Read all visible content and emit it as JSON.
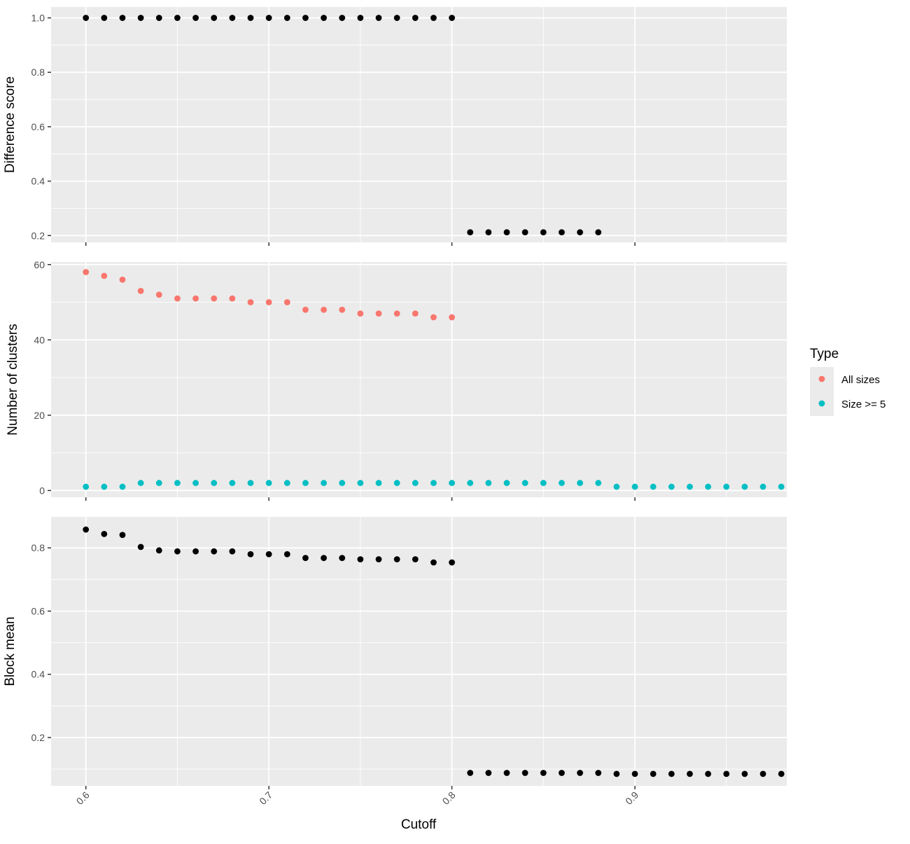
{
  "chart_data": {
    "type": "scatter",
    "xlabel": "Cutoff",
    "x_tick_labels": [
      "0.6",
      "0.7",
      "0.8",
      "0.9"
    ],
    "x_ticks": [
      0.6,
      0.7,
      0.8,
      0.9
    ],
    "xlim": [
      0.581,
      0.983
    ],
    "grid": true,
    "legend": {
      "title": "Type",
      "placement": "right",
      "entries": [
        {
          "label": "All sizes",
          "color": "#F8766D"
        },
        {
          "label": "Size >= 5",
          "color": "#00BFC4"
        }
      ]
    },
    "panels": [
      {
        "id": "difference",
        "ylabel": "Difference score",
        "ylim": [
          0.175,
          1.04
        ],
        "y_ticks": [
          0.2,
          0.4,
          0.6,
          0.8,
          1.0
        ],
        "y_tick_labels": [
          "0.2",
          "0.4",
          "0.6",
          "0.8",
          "1.0"
        ],
        "series": [
          {
            "color": "#000000",
            "x": [
              0.6,
              0.61,
              0.62,
              0.63,
              0.64,
              0.65,
              0.66,
              0.67,
              0.68,
              0.69,
              0.7,
              0.71,
              0.72,
              0.73,
              0.74,
              0.75,
              0.76,
              0.77,
              0.78,
              0.79,
              0.8,
              0.81,
              0.82,
              0.83,
              0.84,
              0.85,
              0.86,
              0.87,
              0.88
            ],
            "y": [
              1.0,
              1.0,
              1.0,
              1.0,
              1.0,
              1.0,
              1.0,
              1.0,
              1.0,
              1.0,
              1.0,
              1.0,
              1.0,
              1.0,
              1.0,
              1.0,
              1.0,
              1.0,
              1.0,
              1.0,
              1.0,
              0.212,
              0.212,
              0.212,
              0.212,
              0.212,
              0.212,
              0.212,
              0.212
            ]
          }
        ]
      },
      {
        "id": "clusters",
        "ylabel": "Number of clusters",
        "ylim": [
          -1.8,
          60.7
        ],
        "y_ticks": [
          0,
          20,
          40,
          60
        ],
        "y_tick_labels": [
          "0",
          "20",
          "40",
          "60"
        ],
        "series": [
          {
            "name": "All sizes",
            "color": "#F8766D",
            "x": [
              0.6,
              0.61,
              0.62,
              0.63,
              0.64,
              0.65,
              0.66,
              0.67,
              0.68,
              0.69,
              0.7,
              0.71,
              0.72,
              0.73,
              0.74,
              0.75,
              0.76,
              0.77,
              0.78,
              0.79,
              0.8
            ],
            "y": [
              58,
              57,
              56,
              53,
              52,
              51,
              51,
              51,
              51,
              50,
              50,
              50,
              48,
              48,
              48,
              47,
              47,
              47,
              47,
              46,
              46
            ]
          },
          {
            "name": "Size >= 5",
            "color": "#00BFC4",
            "x": [
              0.6,
              0.61,
              0.62,
              0.63,
              0.64,
              0.65,
              0.66,
              0.67,
              0.68,
              0.69,
              0.7,
              0.71,
              0.72,
              0.73,
              0.74,
              0.75,
              0.76,
              0.77,
              0.78,
              0.79,
              0.8,
              0.81,
              0.82,
              0.83,
              0.84,
              0.85,
              0.86,
              0.87,
              0.88,
              0.89,
              0.9,
              0.91,
              0.92,
              0.93,
              0.94,
              0.95,
              0.96,
              0.97,
              0.98
            ],
            "y": [
              1,
              1,
              1,
              2,
              2,
              2,
              2,
              2,
              2,
              2,
              2,
              2,
              2,
              2,
              2,
              2,
              2,
              2,
              2,
              2,
              2,
              2,
              2,
              2,
              2,
              2,
              2,
              2,
              2,
              1,
              1,
              1,
              1,
              1,
              1,
              1,
              1,
              1,
              1
            ]
          }
        ]
      },
      {
        "id": "block",
        "ylabel": "Block mean",
        "ylim": [
          0.047,
          0.898
        ],
        "y_ticks": [
          0.2,
          0.4,
          0.6,
          0.8
        ],
        "y_tick_labels": [
          "0.2",
          "0.4",
          "0.6",
          "0.8"
        ],
        "series": [
          {
            "color": "#000000",
            "x": [
              0.6,
              0.61,
              0.62,
              0.63,
              0.64,
              0.65,
              0.66,
              0.67,
              0.68,
              0.69,
              0.7,
              0.71,
              0.72,
              0.73,
              0.74,
              0.75,
              0.76,
              0.77,
              0.78,
              0.79,
              0.8,
              0.81,
              0.82,
              0.83,
              0.84,
              0.85,
              0.86,
              0.87,
              0.88,
              0.89,
              0.9,
              0.91,
              0.92,
              0.93,
              0.94,
              0.95,
              0.96,
              0.97,
              0.98
            ],
            "y": [
              0.858,
              0.844,
              0.841,
              0.803,
              0.792,
              0.789,
              0.789,
              0.789,
              0.789,
              0.78,
              0.78,
              0.78,
              0.768,
              0.768,
              0.768,
              0.764,
              0.764,
              0.764,
              0.764,
              0.754,
              0.754,
              0.088,
              0.088,
              0.088,
              0.088,
              0.088,
              0.088,
              0.088,
              0.088,
              0.085,
              0.085,
              0.085,
              0.085,
              0.085,
              0.085,
              0.085,
              0.085,
              0.085,
              0.085
            ]
          }
        ]
      }
    ]
  }
}
